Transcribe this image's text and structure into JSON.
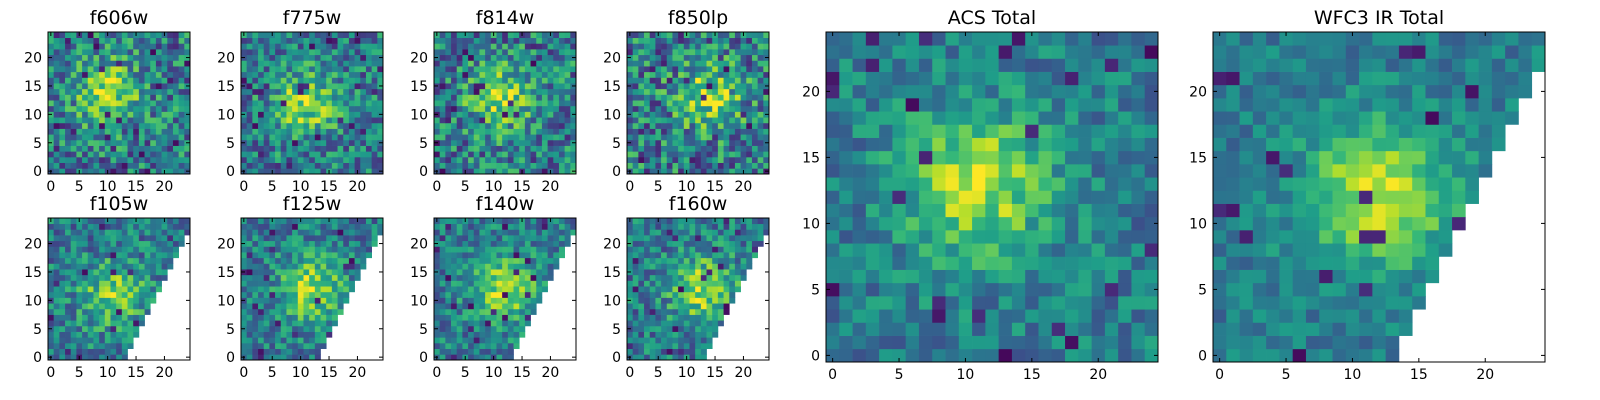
{
  "figure": {
    "background": "#ffffff",
    "colormap": "viridis"
  },
  "chart_data": [
    {
      "type": "heatmap",
      "title": "f606w",
      "size": 25,
      "xlim": [
        0,
        24
      ],
      "ylim": [
        0,
        24
      ],
      "xticks": [
        "0",
        "5",
        "10",
        "15",
        "20"
      ],
      "yticks": [
        "0",
        "5",
        "10",
        "15",
        "20"
      ],
      "mask": "none",
      "center": [
        10,
        14
      ],
      "peak": 0.78,
      "noise": 0.3,
      "seed": 11
    },
    {
      "type": "heatmap",
      "title": "f775w",
      "size": 25,
      "xlim": [
        0,
        24
      ],
      "ylim": [
        0,
        24
      ],
      "xticks": [
        "0",
        "5",
        "10",
        "15",
        "20"
      ],
      "yticks": [
        "0",
        "5",
        "10",
        "15",
        "20"
      ],
      "mask": "none",
      "center": [
        11,
        12
      ],
      "peak": 0.78,
      "noise": 0.27,
      "seed": 23
    },
    {
      "type": "heatmap",
      "title": "f814w",
      "size": 25,
      "xlim": [
        0,
        24
      ],
      "ylim": [
        0,
        24
      ],
      "xticks": [
        "0",
        "5",
        "10",
        "15",
        "20"
      ],
      "yticks": [
        "0",
        "5",
        "10",
        "15",
        "20"
      ],
      "mask": "none",
      "center": [
        11,
        13
      ],
      "peak": 0.78,
      "noise": 0.3,
      "seed": 37
    },
    {
      "type": "heatmap",
      "title": "f850lp",
      "size": 25,
      "xlim": [
        0,
        24
      ],
      "ylim": [
        0,
        24
      ],
      "xticks": [
        "0",
        "5",
        "10",
        "15",
        "20"
      ],
      "yticks": [
        "0",
        "5",
        "10",
        "15",
        "20"
      ],
      "mask": "none",
      "center": [
        14,
        13
      ],
      "peak": 0.74,
      "noise": 0.32,
      "seed": 41
    },
    {
      "type": "heatmap",
      "title": "f105w",
      "size": 25,
      "xlim": [
        0,
        24
      ],
      "ylim": [
        0,
        24
      ],
      "xticks": [
        "0",
        "5",
        "10",
        "15",
        "20"
      ],
      "yticks": [
        "0",
        "5",
        "10",
        "15",
        "20"
      ],
      "mask": "lower-right",
      "center": [
        11,
        11
      ],
      "peak": 0.72,
      "noise": 0.24,
      "seed": 53
    },
    {
      "type": "heatmap",
      "title": "f125w",
      "size": 25,
      "xlim": [
        0,
        24
      ],
      "ylim": [
        0,
        24
      ],
      "xticks": [
        "0",
        "5",
        "10",
        "15",
        "20"
      ],
      "yticks": [
        "0",
        "5",
        "10",
        "15",
        "20"
      ],
      "mask": "lower-right",
      "center": [
        12,
        12
      ],
      "peak": 0.82,
      "noise": 0.22,
      "seed": 67
    },
    {
      "type": "heatmap",
      "title": "f140w",
      "size": 25,
      "xlim": [
        0,
        24
      ],
      "ylim": [
        0,
        24
      ],
      "xticks": [
        "0",
        "5",
        "10",
        "15",
        "20"
      ],
      "yticks": [
        "0",
        "5",
        "10",
        "15",
        "20"
      ],
      "mask": "lower-right",
      "center": [
        12,
        12
      ],
      "peak": 0.8,
      "noise": 0.22,
      "seed": 79
    },
    {
      "type": "heatmap",
      "title": "f160w",
      "size": 25,
      "xlim": [
        0,
        24
      ],
      "ylim": [
        0,
        24
      ],
      "xticks": [
        "0",
        "5",
        "10",
        "15",
        "20"
      ],
      "yticks": [
        "0",
        "5",
        "10",
        "15",
        "20"
      ],
      "mask": "lower-right",
      "center": [
        13,
        12
      ],
      "peak": 0.8,
      "noise": 0.24,
      "seed": 83
    },
    {
      "type": "heatmap",
      "title": "ACS Total",
      "size": 25,
      "xlim": [
        0,
        24
      ],
      "ylim": [
        0,
        24
      ],
      "xticks": [
        "0",
        "5",
        "10",
        "15",
        "20"
      ],
      "yticks": [
        "0",
        "5",
        "10",
        "15",
        "20"
      ],
      "mask": "none",
      "center": [
        11,
        13
      ],
      "peak": 0.86,
      "noise": 0.18,
      "seed": 97
    },
    {
      "type": "heatmap",
      "title": "WFC3 IR Total",
      "size": 25,
      "xlim": [
        0,
        24
      ],
      "ylim": [
        0,
        24
      ],
      "xticks": [
        "0",
        "5",
        "10",
        "15",
        "20"
      ],
      "yticks": [
        "0",
        "5",
        "10",
        "15",
        "20"
      ],
      "mask": "lower-right",
      "center": [
        12,
        12
      ],
      "peak": 0.9,
      "noise": 0.14,
      "seed": 101
    }
  ]
}
